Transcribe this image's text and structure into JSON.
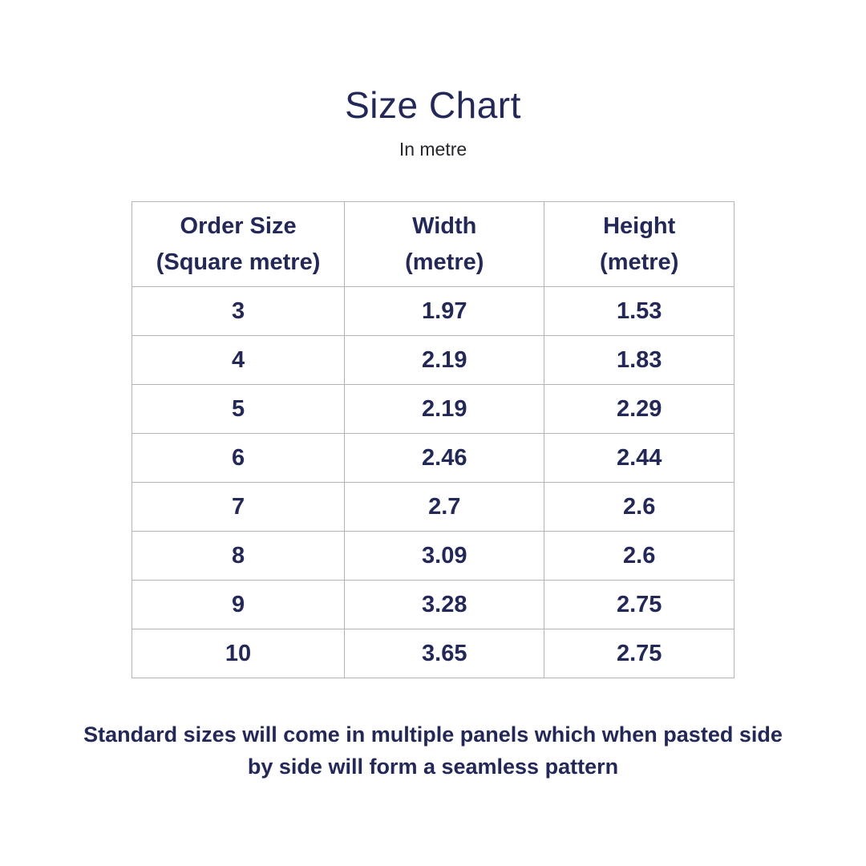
{
  "page": {
    "title": "Size Chart",
    "subtitle": "In metre",
    "footer_note": "Standard sizes  will come in multiple panels which when pasted side by side will form a seamless pattern"
  },
  "colors": {
    "navy": "#232857",
    "subtitle": "#26262f",
    "border": "#b3b3b3",
    "bg": "#ffffff"
  },
  "table": {
    "headers": [
      {
        "line1": "Order Size",
        "line2": "(Square metre)"
      },
      {
        "line1": "Width",
        "line2": "(metre)"
      },
      {
        "line1": "Height",
        "line2": "(metre)"
      }
    ],
    "rows": [
      {
        "size": "3",
        "width": "1.97",
        "height": "1.53"
      },
      {
        "size": "4",
        "width": "2.19",
        "height": "1.83"
      },
      {
        "size": "5",
        "width": "2.19",
        "height": "2.29"
      },
      {
        "size": "6",
        "width": "2.46",
        "height": "2.44"
      },
      {
        "size": "7",
        "width": "2.7",
        "height": "2.6"
      },
      {
        "size": "8",
        "width": "3.09",
        "height": "2.6"
      },
      {
        "size": "9",
        "width": "3.28",
        "height": "2.75"
      },
      {
        "size": "10",
        "width": "3.65",
        "height": "2.75"
      }
    ]
  },
  "chart_data": {
    "type": "table",
    "title": "Size Chart",
    "subtitle": "In metre",
    "columns": [
      "Order Size (Square metre)",
      "Width (metre)",
      "Height (metre)"
    ],
    "rows": [
      [
        3,
        1.97,
        1.53
      ],
      [
        4,
        2.19,
        1.83
      ],
      [
        5,
        2.19,
        2.29
      ],
      [
        6,
        2.46,
        2.44
      ],
      [
        7,
        2.7,
        2.6
      ],
      [
        8,
        3.09,
        2.6
      ],
      [
        9,
        3.28,
        2.75
      ],
      [
        10,
        3.65,
        2.75
      ]
    ],
    "note": "Standard sizes  will come in multiple panels which when pasted side by side will form a seamless pattern"
  }
}
